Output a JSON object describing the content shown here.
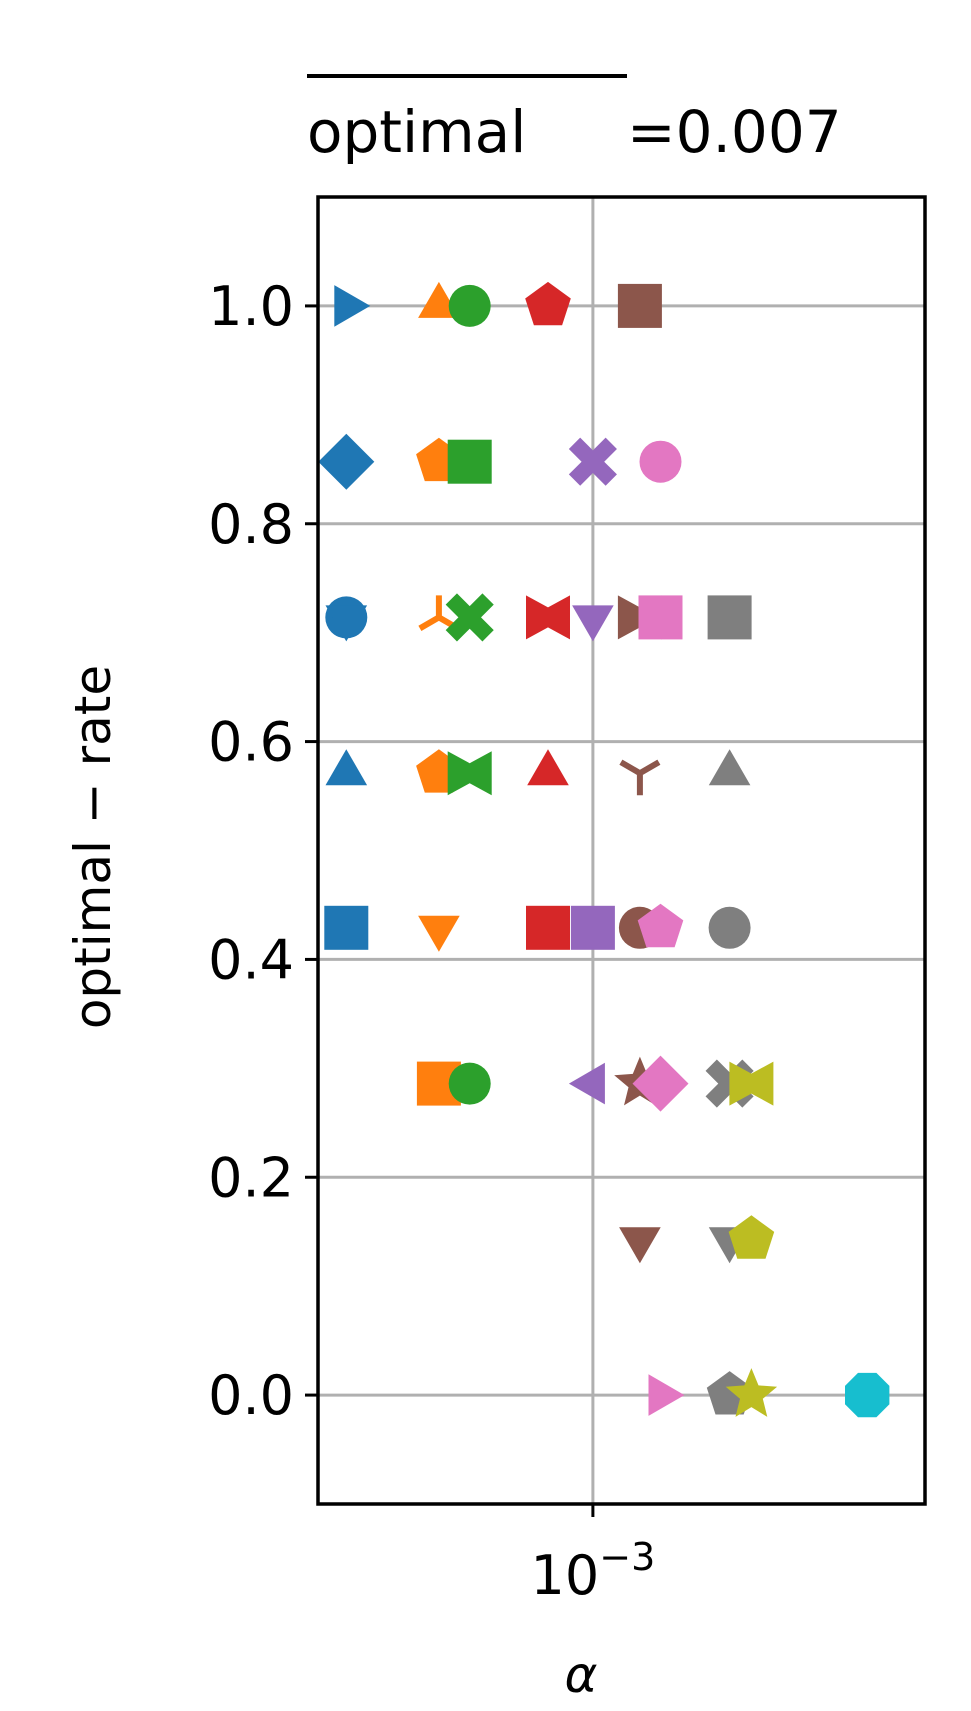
{
  "chart_data": {
    "type": "scatter",
    "title": {
      "overlined": "optimal",
      "suffix": "=0.007"
    },
    "xlabel": "α",
    "ylabel": "optimal − rate",
    "x_scale": "log",
    "xlim": [
      0.000344,
      0.00363
    ],
    "ylim": [
      -0.1,
      1.1
    ],
    "x_ticks": [
      {
        "value": 0.001,
        "base": "10",
        "exponent": "−3"
      }
    ],
    "y_ticks": [
      {
        "value": 0.0,
        "label": "0.0"
      },
      {
        "value": 0.2,
        "label": "0.2"
      },
      {
        "value": 0.4,
        "label": "0.4"
      },
      {
        "value": 0.6,
        "label": "0.6"
      },
      {
        "value": 0.8,
        "label": "0.8"
      },
      {
        "value": 1.0,
        "label": "1.0"
      }
    ],
    "grid": true,
    "colors": [
      "#1f77b4",
      "#ff7f0e",
      "#2ca02c",
      "#d62728",
      "#9467bd",
      "#8c564b",
      "#e377c2",
      "#7f7f7f",
      "#bcbd22",
      "#17becf"
    ],
    "series": [
      {
        "color": "#1f77b4",
        "points": [
          {
            "x": 0.000384,
            "y": 1.0,
            "marker": "triangle-right"
          },
          {
            "x": 0.000384,
            "y": 0.857,
            "marker": "diamond"
          },
          {
            "x": 0.000384,
            "y": 0.714,
            "marker": "circle"
          },
          {
            "x": 0.000384,
            "y": 0.714,
            "marker": "triangle-down"
          },
          {
            "x": 0.000384,
            "y": 0.571,
            "marker": "triangle-up"
          },
          {
            "x": 0.000384,
            "y": 0.429,
            "marker": "square"
          }
        ]
      },
      {
        "color": "#ff7f0e",
        "points": [
          {
            "x": 0.00055,
            "y": 1.0,
            "marker": "triangle-up"
          },
          {
            "x": 0.00055,
            "y": 0.857,
            "marker": "pentagon"
          },
          {
            "x": 0.00055,
            "y": 0.714,
            "marker": "tri-up"
          },
          {
            "x": 0.00055,
            "y": 0.571,
            "marker": "pentagon"
          },
          {
            "x": 0.00055,
            "y": 0.429,
            "marker": "triangle-down"
          },
          {
            "x": 0.00055,
            "y": 0.286,
            "marker": "square"
          }
        ]
      },
      {
        "color": "#2ca02c",
        "points": [
          {
            "x": 0.00062,
            "y": 1.0,
            "marker": "circle"
          },
          {
            "x": 0.00062,
            "y": 0.857,
            "marker": "square"
          },
          {
            "x": 0.00062,
            "y": 0.714,
            "marker": "plus-filled"
          },
          {
            "x": 0.00062,
            "y": 0.571,
            "marker": "bowtie"
          },
          {
            "x": 0.00062,
            "y": 0.286,
            "marker": "circle"
          }
        ]
      },
      {
        "color": "#d62728",
        "points": [
          {
            "x": 0.00084,
            "y": 1.0,
            "marker": "pentagon"
          },
          {
            "x": 0.00084,
            "y": 0.714,
            "marker": "bowtie"
          },
          {
            "x": 0.00084,
            "y": 0.571,
            "marker": "triangle-up"
          },
          {
            "x": 0.00084,
            "y": 0.429,
            "marker": "square"
          }
        ]
      },
      {
        "color": "#9467bd",
        "points": [
          {
            "x": 0.001,
            "y": 0.857,
            "marker": "plus-filled"
          },
          {
            "x": 0.001,
            "y": 0.714,
            "marker": "triangle-down"
          },
          {
            "x": 0.001,
            "y": 0.429,
            "marker": "square"
          },
          {
            "x": 0.001,
            "y": 0.286,
            "marker": "triangle-left"
          }
        ]
      },
      {
        "color": "#8c564b",
        "points": [
          {
            "x": 0.0012,
            "y": 1.0,
            "marker": "square"
          },
          {
            "x": 0.0012,
            "y": 0.714,
            "marker": "bowtie"
          },
          {
            "x": 0.0012,
            "y": 0.571,
            "marker": "tri-down"
          },
          {
            "x": 0.0012,
            "y": 0.429,
            "marker": "circle"
          },
          {
            "x": 0.0012,
            "y": 0.286,
            "marker": "star"
          },
          {
            "x": 0.0012,
            "y": 0.143,
            "marker": "triangle-down"
          }
        ]
      },
      {
        "color": "#e377c2",
        "points": [
          {
            "x": 0.0013,
            "y": 0.857,
            "marker": "circle"
          },
          {
            "x": 0.0013,
            "y": 0.714,
            "marker": "square"
          },
          {
            "x": 0.0013,
            "y": 0.429,
            "marker": "pentagon"
          },
          {
            "x": 0.0013,
            "y": 0.286,
            "marker": "diamond"
          },
          {
            "x": 0.0013,
            "y": 0.0,
            "marker": "triangle-right"
          }
        ]
      },
      {
        "color": "#7f7f7f",
        "points": [
          {
            "x": 0.0017,
            "y": 0.714,
            "marker": "square"
          },
          {
            "x": 0.0017,
            "y": 0.571,
            "marker": "triangle-up"
          },
          {
            "x": 0.0017,
            "y": 0.429,
            "marker": "circle"
          },
          {
            "x": 0.0017,
            "y": 0.286,
            "marker": "plus-filled"
          },
          {
            "x": 0.0017,
            "y": 0.143,
            "marker": "triangle-down"
          },
          {
            "x": 0.0017,
            "y": 0.0,
            "marker": "pentagon"
          }
        ]
      },
      {
        "color": "#bcbd22",
        "points": [
          {
            "x": 0.00185,
            "y": 0.286,
            "marker": "bowtie"
          },
          {
            "x": 0.00185,
            "y": 0.143,
            "marker": "pentagon"
          },
          {
            "x": 0.00185,
            "y": 0.0,
            "marker": "star"
          }
        ]
      },
      {
        "color": "#17becf",
        "points": [
          {
            "x": 0.0029,
            "y": 0.0,
            "marker": "octagon"
          }
        ]
      }
    ]
  }
}
